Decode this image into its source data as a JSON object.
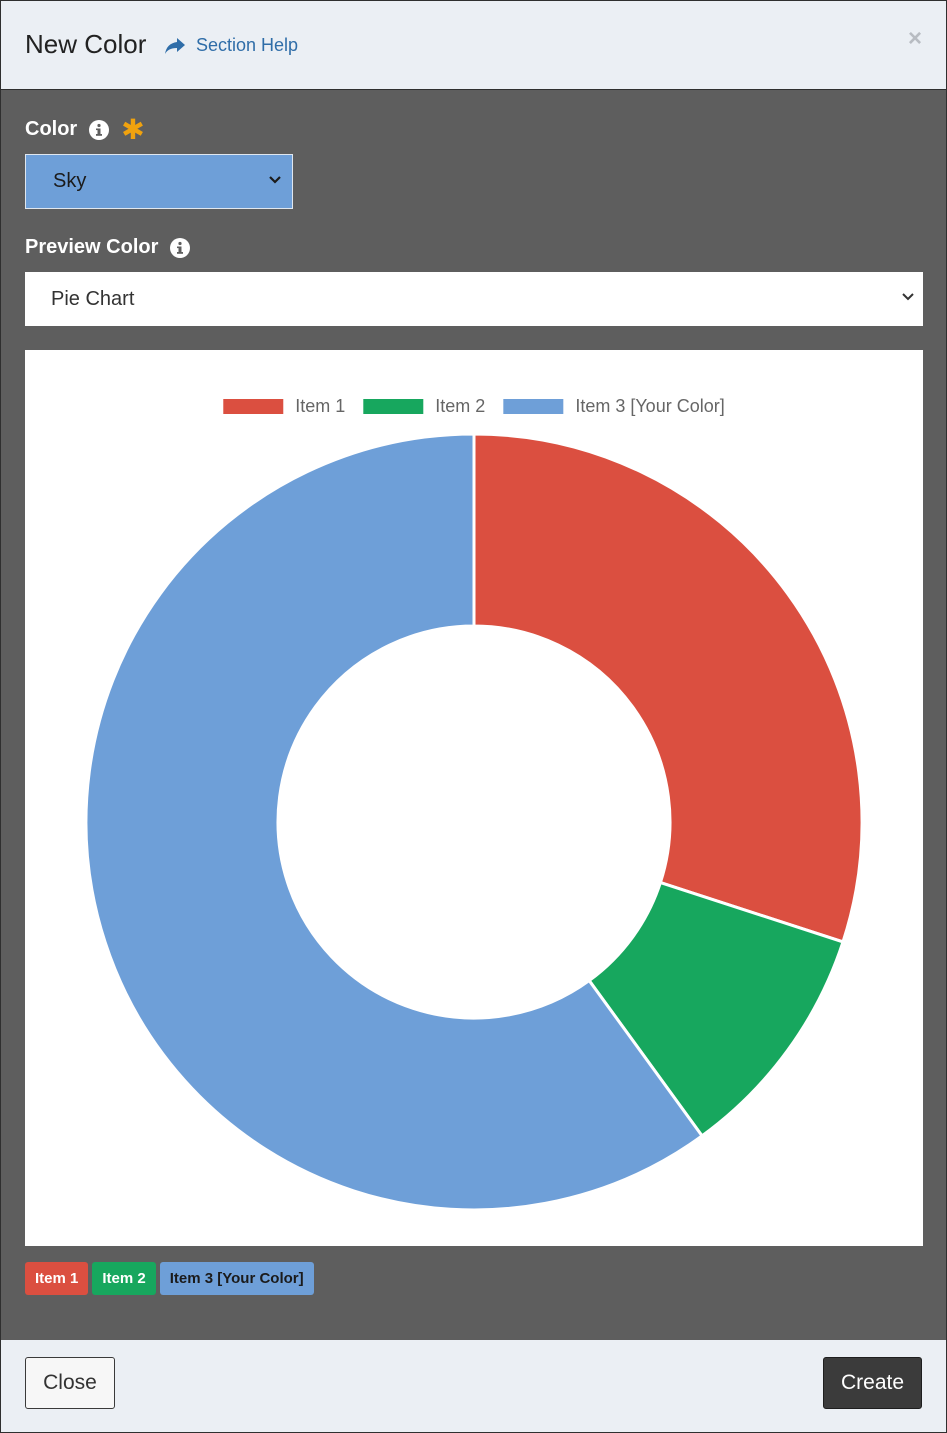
{
  "header": {
    "title": "New Color",
    "help_label": "Section Help",
    "close_symbol": "×"
  },
  "form": {
    "color_label": "Color",
    "color_value": "Sky",
    "preview_label": "Preview Color",
    "preview_value": "Pie Chart"
  },
  "colors": {
    "item1": "#db4f40",
    "item2": "#17a75e",
    "item3": "#6e9fd8"
  },
  "chart_data": {
    "type": "pie",
    "style": "donut",
    "legend_position": "top",
    "labels": [
      "Item 1",
      "Item 2",
      "Item 3 [Your Color]"
    ],
    "values": [
      30,
      10,
      60
    ],
    "colors": [
      "#db4f40",
      "#17a75e",
      "#6e9fd8"
    ]
  },
  "badges": [
    "Item 1",
    "Item 2",
    "Item 3 [Your Color]"
  ],
  "footer": {
    "close_label": "Close",
    "create_label": "Create"
  }
}
